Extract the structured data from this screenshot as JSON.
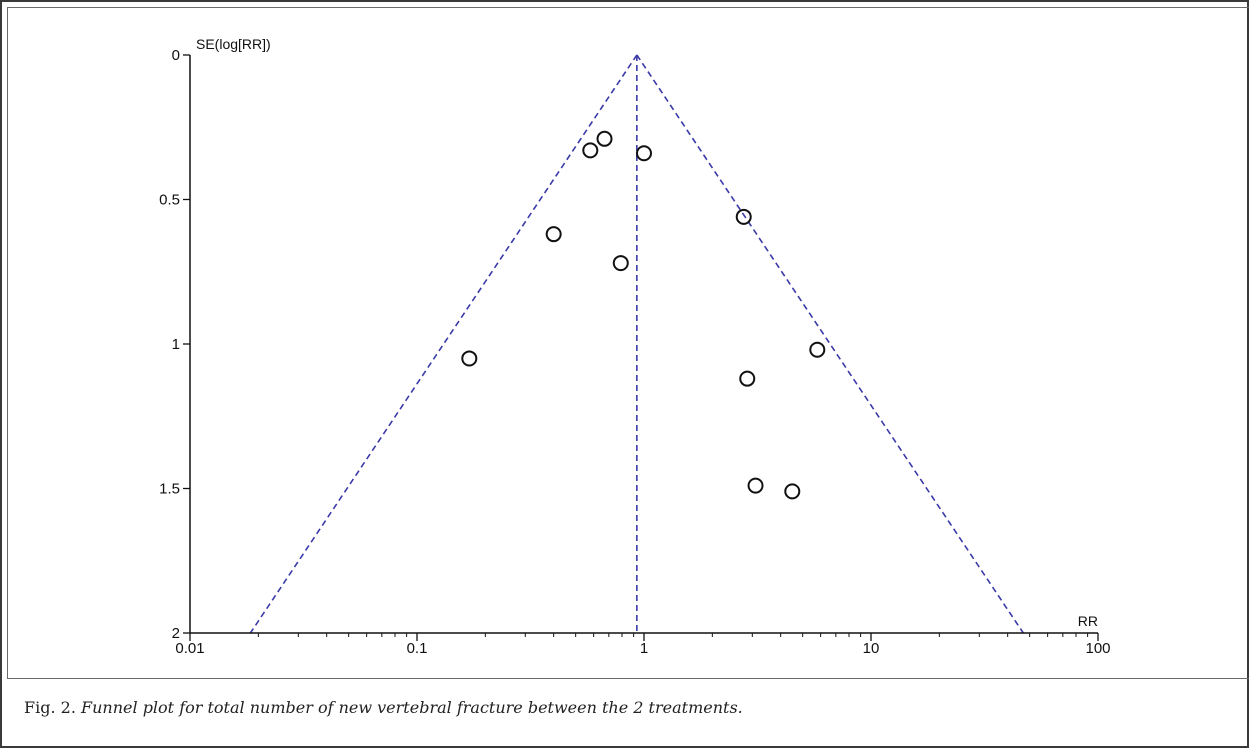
{
  "caption": {
    "fig_label": "Fig. 2.",
    "text": "Funnel plot for total number of  new vertebral fracture between the 2 treatments."
  },
  "chart_data": {
    "type": "scatter",
    "title": "",
    "xlabel": "RR",
    "ylabel": "SE(log[RR])",
    "x_scale": "log",
    "xlim": [
      0.01,
      100
    ],
    "ylim": [
      0,
      2
    ],
    "y_reversed": true,
    "x_ticks": [
      {
        "value": 0.01,
        "label": "0.01"
      },
      {
        "value": 0.1,
        "label": "0.1"
      },
      {
        "value": 1,
        "label": "1"
      },
      {
        "value": 10,
        "label": "10"
      },
      {
        "value": 100,
        "label": "100"
      }
    ],
    "y_ticks": [
      {
        "value": 0,
        "label": "0"
      },
      {
        "value": 0.5,
        "label": "0.5"
      },
      {
        "value": 1,
        "label": "1"
      },
      {
        "value": 1.5,
        "label": "1.5"
      },
      {
        "value": 2,
        "label": "2"
      }
    ],
    "pooled_rr": 0.93,
    "funnel_color": "#3a3aa8",
    "marker_color": "#111111",
    "points": [
      {
        "x": 0.67,
        "y": 0.29
      },
      {
        "x": 0.58,
        "y": 0.33
      },
      {
        "x": 1.0,
        "y": 0.34
      },
      {
        "x": 2.75,
        "y": 0.56
      },
      {
        "x": 0.4,
        "y": 0.62
      },
      {
        "x": 0.79,
        "y": 0.72
      },
      {
        "x": 5.8,
        "y": 1.02
      },
      {
        "x": 0.17,
        "y": 1.05
      },
      {
        "x": 2.85,
        "y": 1.12
      },
      {
        "x": 3.1,
        "y": 1.49
      },
      {
        "x": 4.5,
        "y": 1.51
      }
    ]
  }
}
